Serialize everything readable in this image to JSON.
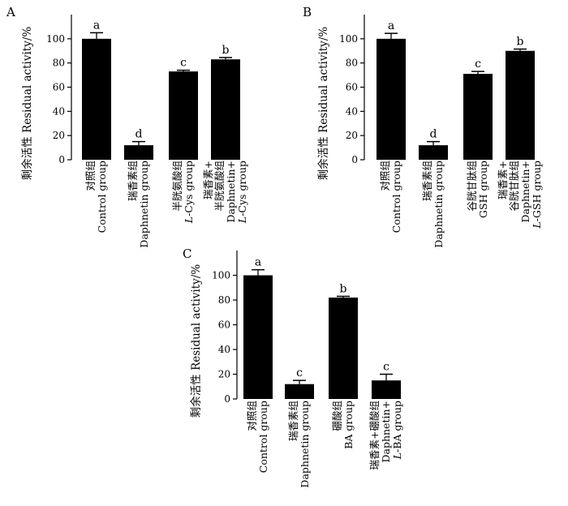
{
  "chart_data": [
    {
      "panel": "A",
      "type": "bar",
      "ylabel": "剩余活性  Residual activity/%",
      "ylim": [
        0,
        120
      ],
      "yticks": [
        0,
        20,
        40,
        60,
        80,
        100
      ],
      "categories": [
        [
          "对照组",
          "Control group"
        ],
        [
          "瑞香素组",
          "Daphnetin group"
        ],
        [
          "半胱氨酸组",
          "L-Cys group"
        ],
        [
          "瑞香素+",
          "半胱氨酸组",
          "Daphnetin+",
          "L-Cys group"
        ]
      ],
      "values": [
        100,
        12,
        73,
        83
      ],
      "errors": [
        5,
        3,
        1,
        1.5
      ],
      "significance": [
        "a",
        "d",
        "c",
        "b"
      ],
      "bar_color": "#000000"
    },
    {
      "panel": "B",
      "type": "bar",
      "ylabel": "剩余活性  Residual activity/%",
      "ylim": [
        0,
        120
      ],
      "yticks": [
        0,
        20,
        40,
        60,
        80,
        100
      ],
      "categories": [
        [
          "对照组",
          "Control group"
        ],
        [
          "瑞香素组",
          "Daphnetin group"
        ],
        [
          "谷胱甘肽组",
          "GSH group"
        ],
        [
          "瑞香素+",
          "谷胱甘肽组",
          "Daphnetin+",
          "L-GSH group"
        ]
      ],
      "values": [
        100,
        12,
        71,
        90
      ],
      "errors": [
        4.5,
        3,
        2,
        1.5
      ],
      "significance": [
        "a",
        "d",
        "c",
        "b"
      ],
      "bar_color": "#000000"
    },
    {
      "panel": "C",
      "type": "bar",
      "ylabel": "剩余活性  Residual activity/%",
      "ylim": [
        0,
        120
      ],
      "yticks": [
        0,
        20,
        40,
        60,
        80,
        100
      ],
      "categories": [
        [
          "对照组",
          "Control group"
        ],
        [
          "瑞香素组",
          "Daphnetin group"
        ],
        [
          "硼酸组",
          "BA group"
        ],
        [
          "瑞香素+硼酸组",
          "Daphnetin+",
          "L-BA group"
        ]
      ],
      "values": [
        100,
        12,
        82,
        15
      ],
      "errors": [
        4.5,
        3,
        1,
        5
      ],
      "significance": [
        "a",
        "c",
        "b",
        "c"
      ],
      "bar_color": "#000000"
    }
  ]
}
